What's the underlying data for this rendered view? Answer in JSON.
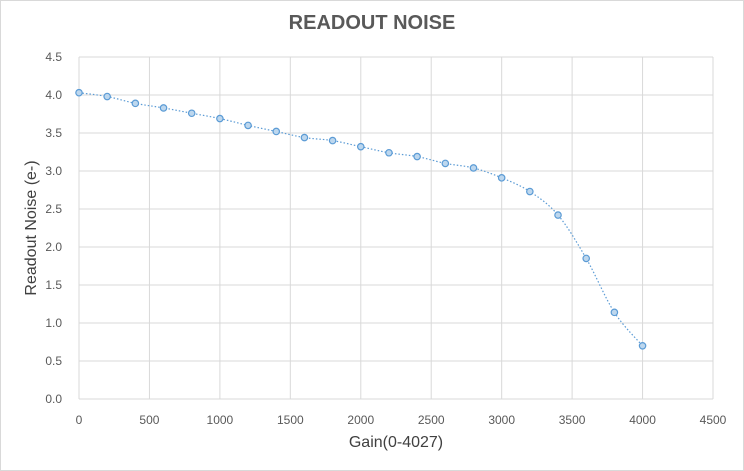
{
  "chart_data": {
    "type": "line",
    "title": "READOUT NOISE",
    "xlabel": "Gain(0-4027)",
    "ylabel": "Readout Noise (e-)",
    "xlim": [
      0,
      4500
    ],
    "ylim": [
      0,
      4.5
    ],
    "x_ticks": [
      "0",
      "500",
      "1000",
      "1500",
      "2000",
      "2500",
      "3000",
      "3500",
      "4000",
      "4500"
    ],
    "y_ticks": [
      "0.0",
      "0.5",
      "1.0",
      "1.5",
      "2.0",
      "2.5",
      "3.0",
      "3.5",
      "4.0",
      "4.5"
    ],
    "grid": true,
    "legend": "none",
    "series": [
      {
        "color": "#5b9bd5",
        "x": [
          0,
          200,
          400,
          600,
          800,
          1000,
          1200,
          1400,
          1600,
          1800,
          2000,
          2200,
          2400,
          2600,
          2800,
          3000,
          3200,
          3400,
          3600,
          3800,
          4000
        ],
        "y": [
          4.03,
          3.98,
          3.89,
          3.83,
          3.76,
          3.69,
          3.6,
          3.52,
          3.44,
          3.4,
          3.32,
          3.24,
          3.19,
          3.1,
          3.04,
          2.91,
          2.73,
          2.42,
          1.85,
          1.14,
          0.7
        ]
      }
    ]
  }
}
